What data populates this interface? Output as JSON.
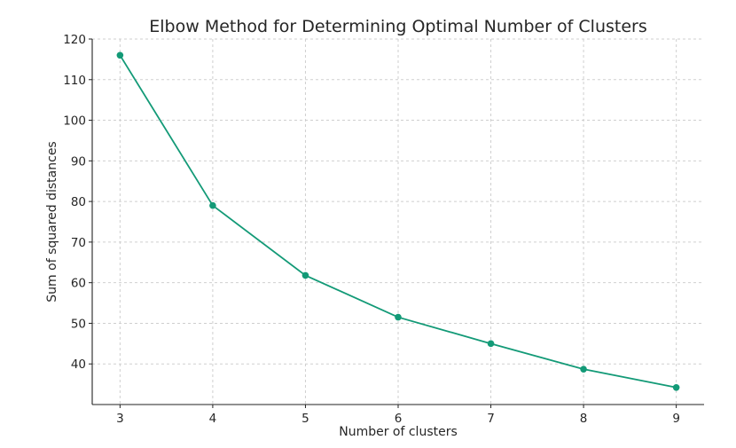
{
  "chart_data": {
    "type": "line",
    "title": "Elbow Method for Determining Optimal Number of Clusters",
    "xlabel": "Number of clusters",
    "ylabel": "Sum of squared distances",
    "x": [
      3,
      4,
      5,
      6,
      7,
      8,
      9
    ],
    "series": [
      {
        "values": [
          116.0,
          79.0,
          61.8,
          51.5,
          45.0,
          38.7,
          34.2
        ]
      }
    ],
    "xlim": [
      2.7,
      9.3
    ],
    "ylim": [
      30,
      120
    ],
    "xticks": [
      "3",
      "4",
      "5",
      "6",
      "7",
      "8",
      "9"
    ],
    "yticks": [
      "40",
      "50",
      "60",
      "70",
      "80",
      "90",
      "100",
      "110",
      "120"
    ],
    "grid": true,
    "line_color": "#139a77",
    "marker": "circle"
  }
}
